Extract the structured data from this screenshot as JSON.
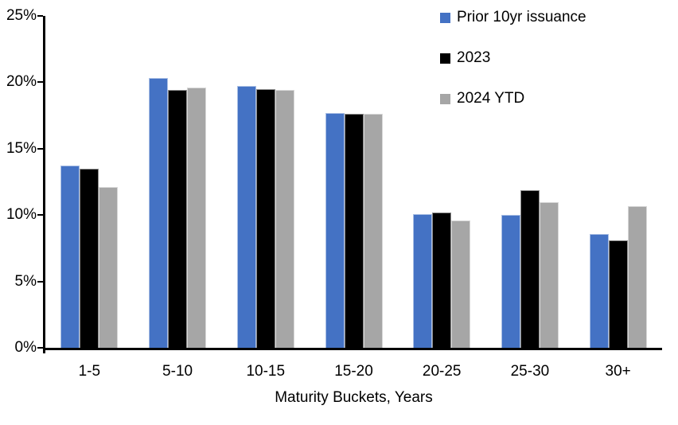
{
  "chart_data": {
    "type": "bar",
    "title": "",
    "categories": [
      "1-5",
      "5-10",
      "10-15",
      "15-20",
      "20-25",
      "25-30",
      "30+"
    ],
    "series": [
      {
        "name": "Prior 10yr issuance",
        "color": "#4472C4",
        "values": [
          13.7,
          20.3,
          19.7,
          17.7,
          10.1,
          10.0,
          8.6
        ]
      },
      {
        "name": "2023",
        "color": "#000000",
        "values": [
          13.5,
          19.4,
          19.5,
          17.6,
          10.2,
          11.9,
          8.1
        ]
      },
      {
        "name": "2024 YTD",
        "color": "#A6A6A6",
        "values": [
          12.1,
          19.6,
          19.4,
          17.6,
          9.6,
          11.0,
          10.7
        ]
      }
    ],
    "xlabel": "Maturity Buckets, Years",
    "ylabel": "",
    "ylim": [
      0,
      25
    ],
    "yticks": {
      "values": [
        0,
        5,
        10,
        15,
        20,
        25
      ],
      "labels": [
        "0%",
        "5%",
        "10%",
        "15%",
        "20%",
        "25%"
      ]
    },
    "legend_position": "top-right",
    "grid": false,
    "axis_color": "#000000",
    "background_color": "#FFFFFF"
  }
}
